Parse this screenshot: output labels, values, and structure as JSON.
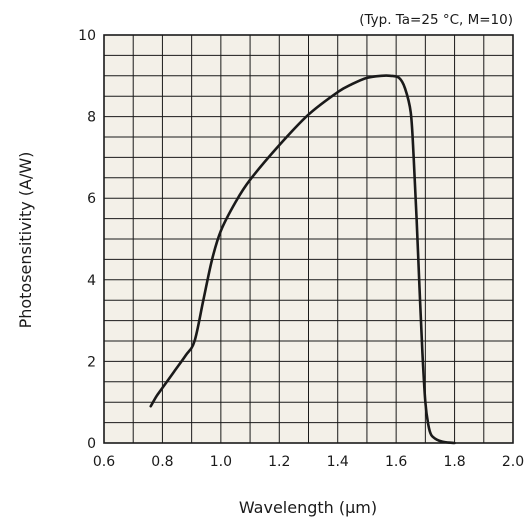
{
  "chart_data": {
    "type": "line",
    "title": "",
    "annotation": "(Typ. Ta=25 °C, M=10)",
    "xlabel": "Wavelength (µm)",
    "ylabel": "Photosensitivity (A/W)",
    "xlim": [
      0.6,
      2.0
    ],
    "ylim": [
      0,
      10
    ],
    "x_ticks": [
      0.6,
      0.8,
      1.0,
      1.2,
      1.4,
      1.6,
      1.8,
      2.0
    ],
    "x_tick_labels": [
      "0.6",
      "0.8",
      "1.0",
      "1.2",
      "1.4",
      "1.6",
      "1.8",
      "2.0"
    ],
    "y_ticks": [
      0,
      2,
      4,
      6,
      8,
      10
    ],
    "y_tick_labels": [
      "0",
      "2",
      "4",
      "6",
      "8",
      "10"
    ],
    "grid": true,
    "colors": {
      "plot_background": "#f3f0e8",
      "grid": "#1a1a1a",
      "curve": "#1a1a1a"
    },
    "series": [
      {
        "x": [
          0.76,
          0.78,
          0.8,
          0.84,
          0.88,
          0.91,
          0.94,
          0.97,
          1.0,
          1.05,
          1.1,
          1.2,
          1.3,
          1.4,
          1.45,
          1.5,
          1.55,
          1.58,
          1.61,
          1.63,
          1.65,
          1.66,
          1.67,
          1.68,
          1.69,
          1.7,
          1.71,
          1.72,
          1.74,
          1.76,
          1.78,
          1.8
        ],
        "y": [
          0.9,
          1.15,
          1.35,
          1.75,
          2.15,
          2.5,
          3.5,
          4.5,
          5.2,
          5.9,
          6.45,
          7.3,
          8.05,
          8.6,
          8.8,
          8.95,
          9.0,
          9.0,
          8.95,
          8.7,
          8.1,
          7.0,
          5.5,
          3.8,
          2.2,
          1.0,
          0.45,
          0.2,
          0.08,
          0.03,
          0.01,
          0.0
        ]
      }
    ]
  }
}
